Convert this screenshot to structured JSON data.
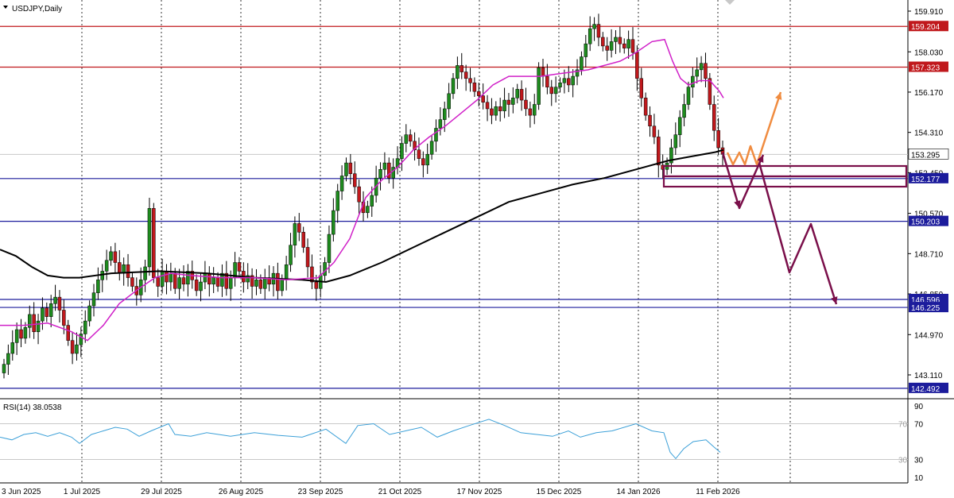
{
  "symbol_label": "USDJPY,Daily",
  "rsi_label": "RSI(14) 38.0538",
  "colors": {
    "bull": "#1e8c1e",
    "bear": "#c0181c",
    "ema_fast": "#d020c8",
    "ma_slow": "#000000",
    "resistance": "#c0181c",
    "support": "#1c1c9c",
    "rsi": "#3ca0d8",
    "forecast_up": "#f08c40",
    "forecast_down": "#7a0f4a",
    "zone_box": "#7a0f4a",
    "current_price_tag": "#ffffff"
  },
  "chart_data": {
    "type": "candlestick",
    "price_axis_ticks": [
      "159.910",
      "158.030",
      "156.170",
      "154.310",
      "152.450",
      "150.570",
      "148.710",
      "146.850",
      "144.970",
      "143.110"
    ],
    "ylim": [
      142.4,
      160.2
    ],
    "date_labels": [
      "3 Jun 2025",
      "1 Jul 2025",
      "29 Jul 2025",
      "26 Aug 2025",
      "23 Sep 2025",
      "21 Oct 2025",
      "17 Nov 2025",
      "15 Dec 2025",
      "14 Jan 2026",
      "11 Feb 2026"
    ],
    "horizontal_levels": [
      {
        "value": 159.204,
        "label": "159.204",
        "kind": "resistance"
      },
      {
        "value": 157.323,
        "label": "157.323",
        "kind": "resistance"
      },
      {
        "value": 152.177,
        "label": "152.177",
        "kind": "support"
      },
      {
        "value": 150.203,
        "label": "150.203",
        "kind": "support"
      },
      {
        "value": 146.596,
        "label": "146.596",
        "kind": "support"
      },
      {
        "value": 146.225,
        "label": "146.225",
        "kind": "support"
      },
      {
        "value": 142.492,
        "label": "142.492",
        "kind": "support"
      }
    ],
    "current_price": {
      "value": 153.295,
      "label": "153.295"
    },
    "close_series": [
      143.6,
      144.1,
      144.6,
      145.2,
      144.8,
      145.3,
      145.9,
      145.1,
      145.6,
      146.2,
      145.8,
      146.4,
      146.7,
      146.1,
      145.4,
      144.7,
      144.1,
      144.5,
      145.0,
      145.6,
      146.3,
      146.9,
      147.5,
      147.9,
      148.4,
      148.8,
      148.3,
      147.8,
      148.2,
      147.6,
      147.2,
      146.8,
      147.5,
      148.1,
      150.8,
      147.6,
      147.2,
      147.9,
      147.4,
      147.8,
      147.1,
      147.6,
      147.3,
      147.9,
      147.5,
      147.0,
      147.4,
      147.8,
      147.3,
      147.6,
      147.2,
      147.8,
      147.1,
      147.6,
      148.3,
      147.9,
      147.4,
      147.7,
      147.2,
      147.5,
      147.1,
      147.6,
      147.3,
      147.8,
      147.0,
      147.5,
      148.2,
      149.1,
      150.1,
      149.7,
      149.0,
      148.1,
      147.4,
      147.1,
      147.7,
      148.3,
      149.6,
      150.7,
      151.6,
      152.3,
      152.9,
      152.4,
      151.8,
      151.1,
      150.6,
      150.9,
      151.4,
      152.2,
      152.6,
      152.9,
      152.2,
      152.7,
      153.1,
      153.8,
      154.2,
      153.9,
      153.5,
      153.1,
      152.8,
      153.3,
      153.9,
      154.5,
      154.9,
      155.4,
      156.1,
      156.8,
      157.4,
      157.1,
      156.8,
      156.6,
      156.2,
      156.0,
      155.7,
      155.4,
      155.1,
      155.5,
      155.3,
      155.8,
      155.6,
      155.9,
      156.3,
      155.8,
      155.4,
      155.1,
      155.6,
      157.3,
      156.9,
      156.4,
      156.1,
      156.4,
      156.6,
      156.8,
      156.5,
      156.9,
      157.2,
      157.8,
      158.4,
      159.1,
      159.3,
      158.7,
      158.3,
      158.1,
      158.5,
      158.7,
      158.4,
      158.2,
      158.6,
      158.0,
      156.8,
      155.9,
      155.1,
      154.6,
      154.1,
      152.8,
      152.6,
      152.9,
      153.6,
      154.2,
      155.0,
      155.6,
      156.4,
      156.9,
      157.2,
      157.5,
      156.8,
      155.6,
      154.4,
      153.6,
      153.3
    ],
    "ma_slow_points": [
      [
        0,
        148.9
      ],
      [
        20,
        148.6
      ],
      [
        40,
        148.1
      ],
      [
        60,
        147.7
      ],
      [
        80,
        147.6
      ],
      [
        100,
        147.6
      ],
      [
        140,
        147.8
      ],
      [
        200,
        147.9
      ],
      [
        260,
        147.8
      ],
      [
        320,
        147.6
      ],
      [
        380,
        147.5
      ],
      [
        410,
        147.4
      ],
      [
        440,
        147.7
      ],
      [
        480,
        148.3
      ],
      [
        520,
        149.0
      ],
      [
        560,
        149.7
      ],
      [
        600,
        150.4
      ],
      [
        640,
        151.1
      ],
      [
        680,
        151.5
      ],
      [
        720,
        151.9
      ],
      [
        760,
        152.2
      ],
      [
        800,
        152.6
      ],
      [
        840,
        153.0
      ],
      [
        870,
        153.2
      ],
      [
        900,
        153.4
      ],
      [
        910,
        153.5
      ]
    ],
    "ema_fast_points": [
      [
        0,
        145.4
      ],
      [
        30,
        145.4
      ],
      [
        60,
        145.5
      ],
      [
        90,
        145.1
      ],
      [
        110,
        144.7
      ],
      [
        130,
        145.4
      ],
      [
        150,
        146.4
      ],
      [
        175,
        147.1
      ],
      [
        195,
        147.6
      ],
      [
        215,
        147.8
      ],
      [
        240,
        147.7
      ],
      [
        280,
        147.6
      ],
      [
        320,
        147.6
      ],
      [
        360,
        147.5
      ],
      [
        400,
        147.6
      ],
      [
        420,
        148.3
      ],
      [
        440,
        149.4
      ],
      [
        460,
        151.3
      ],
      [
        480,
        152.1
      ],
      [
        500,
        152.7
      ],
      [
        520,
        153.5
      ],
      [
        540,
        154.1
      ],
      [
        560,
        154.6
      ],
      [
        580,
        155.2
      ],
      [
        600,
        155.8
      ],
      [
        620,
        156.5
      ],
      [
        640,
        156.9
      ],
      [
        660,
        156.9
      ],
      [
        680,
        156.9
      ],
      [
        700,
        157.0
      ],
      [
        720,
        157.1
      ],
      [
        740,
        157.2
      ],
      [
        760,
        157.4
      ],
      [
        780,
        157.6
      ],
      [
        800,
        158.0
      ],
      [
        820,
        158.5
      ],
      [
        836,
        158.6
      ],
      [
        846,
        157.6
      ],
      [
        856,
        156.8
      ],
      [
        866,
        156.5
      ],
      [
        880,
        156.7
      ],
      [
        893,
        156.7
      ],
      [
        905,
        156.2
      ],
      [
        910,
        155.9
      ]
    ],
    "rsi_ticks": [
      "90",
      "70",
      "30",
      "10"
    ],
    "rsi_levels": [
      70,
      30
    ],
    "rsi_ylim": [
      5,
      95
    ],
    "rsi_points": [
      [
        0,
        55
      ],
      [
        15,
        52
      ],
      [
        30,
        58
      ],
      [
        45,
        60
      ],
      [
        60,
        56
      ],
      [
        75,
        60
      ],
      [
        90,
        55
      ],
      [
        100,
        48
      ],
      [
        115,
        58
      ],
      [
        130,
        62
      ],
      [
        145,
        66
      ],
      [
        160,
        64
      ],
      [
        175,
        56
      ],
      [
        190,
        62
      ],
      [
        212,
        70
      ],
      [
        220,
        58
      ],
      [
        240,
        56
      ],
      [
        260,
        60
      ],
      [
        290,
        56
      ],
      [
        320,
        60
      ],
      [
        350,
        57
      ],
      [
        380,
        55
      ],
      [
        410,
        64
      ],
      [
        435,
        48
      ],
      [
        450,
        68
      ],
      [
        470,
        70
      ],
      [
        490,
        58
      ],
      [
        510,
        62
      ],
      [
        530,
        66
      ],
      [
        550,
        55
      ],
      [
        570,
        62
      ],
      [
        590,
        68
      ],
      [
        615,
        75
      ],
      [
        635,
        68
      ],
      [
        655,
        60
      ],
      [
        675,
        58
      ],
      [
        695,
        56
      ],
      [
        715,
        62
      ],
      [
        730,
        55
      ],
      [
        750,
        60
      ],
      [
        770,
        62
      ],
      [
        800,
        70
      ],
      [
        820,
        62
      ],
      [
        835,
        60
      ],
      [
        843,
        38
      ],
      [
        850,
        31
      ],
      [
        860,
        42
      ],
      [
        872,
        50
      ],
      [
        888,
        52
      ],
      [
        898,
        44
      ],
      [
        906,
        38
      ]
    ],
    "forecast_orange": [
      [
        915,
        192
      ],
      [
        922,
        207
      ],
      [
        930,
        192
      ],
      [
        937,
        207
      ],
      [
        944,
        184
      ],
      [
        952,
        207
      ],
      [
        982,
        116
      ]
    ],
    "forecast_path_a": [
      [
        909,
        192
      ],
      [
        930,
        262
      ],
      [
        960,
        195
      ]
    ],
    "forecast_path_b": [
      [
        955,
        205
      ],
      [
        993,
        343
      ],
      [
        1020,
        282
      ],
      [
        1052,
        383
      ]
    ],
    "zone_boxes": [
      [
        835,
        209,
        1140,
        222
      ],
      [
        835,
        222,
        1140,
        235
      ]
    ]
  }
}
